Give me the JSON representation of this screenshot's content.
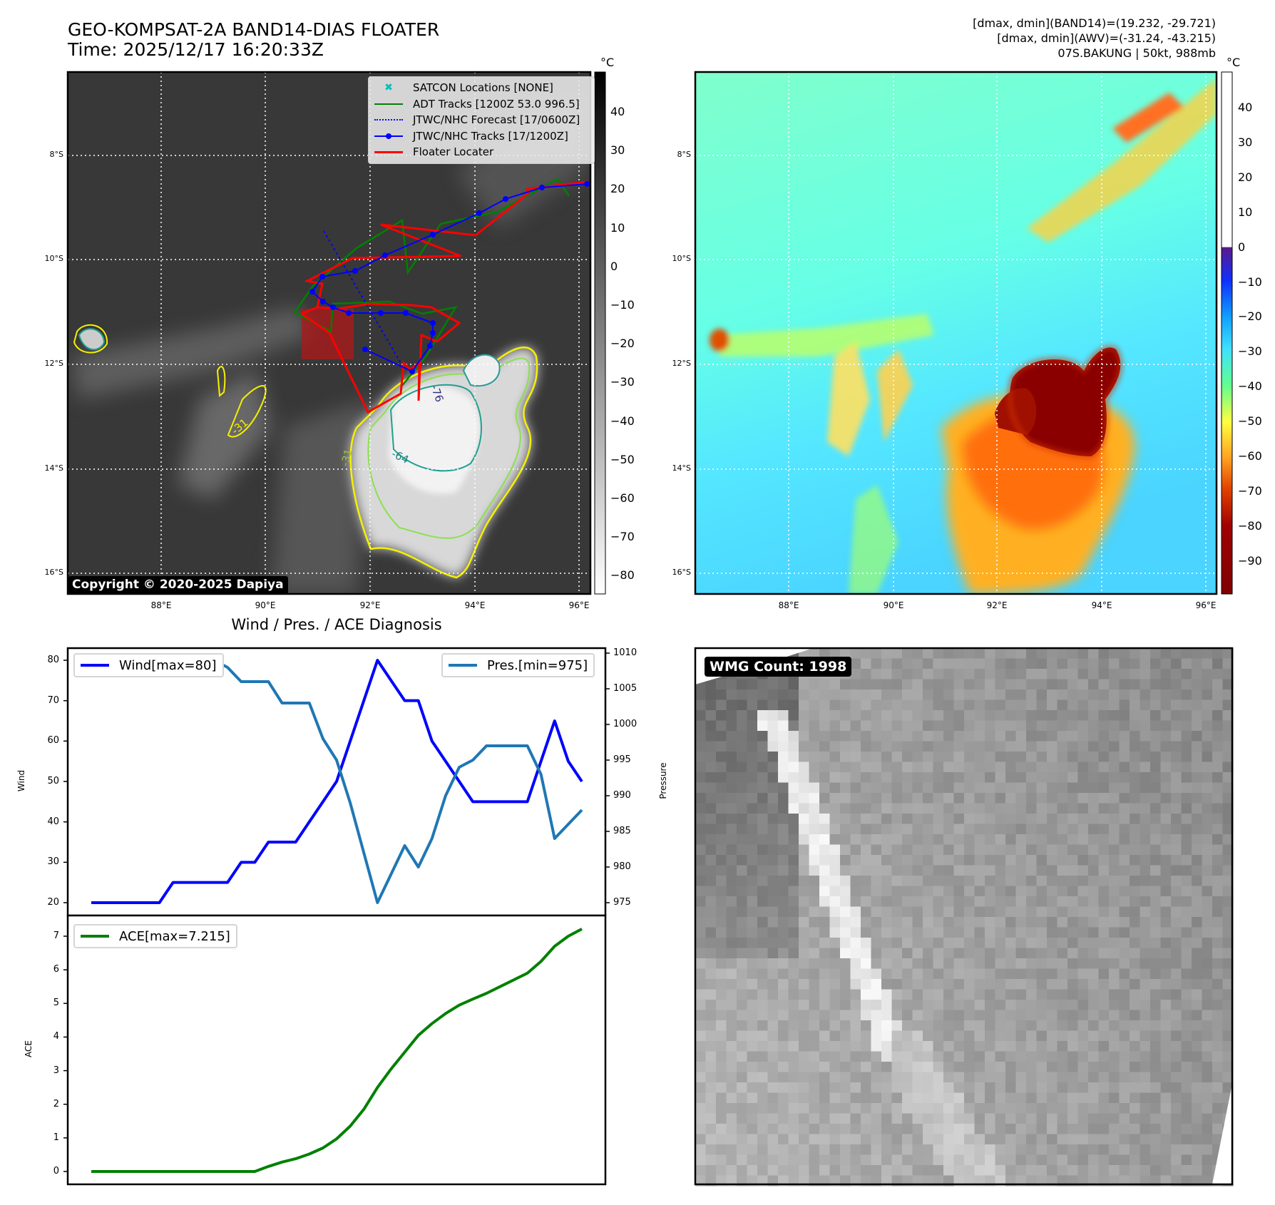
{
  "title": {
    "line1": "GEO-KOMPSAT-2A BAND14-DIAS FLOATER",
    "line2": "Time: 2025/12/17 16:20:33Z"
  },
  "header_info": {
    "line1": "[dmax, dmin](BAND14)=(19.232, -29.721)",
    "line2": "[dmax, dmin](AWV)=(-31.24, -43.215)",
    "line3": "07S.BAKUNG | 50kt, 988mb"
  },
  "map": {
    "lat_labels": [
      "8°S",
      "10°S",
      "12°S",
      "14°S",
      "16°S"
    ],
    "lon_labels": [
      "88°E",
      "90°E",
      "92°E",
      "94°E",
      "96°E"
    ],
    "contour_labels": [
      "-31",
      "-64",
      "-76",
      "-31"
    ],
    "copyright": "Copyright © 2020-2025 Dapiya",
    "legend": [
      {
        "label": "SATCON Locations [NONE]",
        "color": "#00bfbf"
      },
      {
        "label": "ADT Tracks [1200Z 53.0 996.5]",
        "color": "#008000"
      },
      {
        "label": "JTWC/NHC Forecast [17/0600Z]",
        "color": "#0000ff"
      },
      {
        "label": "JTWC/NHC Tracks [17/1200Z]",
        "color": "#0000ff"
      },
      {
        "label": "Floater Locater",
        "color": "#ff0000"
      }
    ]
  },
  "colorbar_left": {
    "unit": "°C",
    "ticks": [
      "40",
      "30",
      "20",
      "10",
      "0",
      "−10",
      "−20",
      "−30",
      "−40",
      "−50",
      "−60",
      "−70",
      "−80"
    ]
  },
  "colorbar_right": {
    "unit": "°C",
    "ticks": [
      "40",
      "30",
      "20",
      "10",
      "0",
      "−10",
      "−20",
      "−30",
      "−40",
      "−50",
      "−60",
      "−70",
      "−80",
      "−90"
    ]
  },
  "wmg": {
    "label": "WMG Count: 1998"
  },
  "chart_data": {
    "type": "line",
    "title": "Wind / Pres. / ACE Diagnosis",
    "x": [
      0,
      1,
      2,
      3,
      4,
      5,
      6,
      7,
      8,
      9,
      10,
      11,
      12,
      13,
      14,
      15,
      16,
      17,
      18,
      19,
      20,
      21,
      22,
      23,
      24,
      25,
      26,
      27,
      28,
      29,
      30,
      31,
      32,
      33,
      34,
      35,
      36
    ],
    "series": [
      {
        "name": "Wind[max=80]",
        "axis": "wind",
        "color": "#0000ff",
        "values": [
          20,
          20,
          20,
          20,
          20,
          20,
          25,
          25,
          25,
          25,
          25,
          30,
          30,
          35,
          35,
          35,
          40,
          45,
          50,
          60,
          70,
          80,
          75,
          70,
          70,
          60,
          55,
          50,
          45,
          45,
          45,
          45,
          45,
          55,
          65,
          55,
          50
        ]
      },
      {
        "name": "Pres.[min=975]",
        "axis": "pressure",
        "color": "#1f77b4",
        "values": [
          1008,
          1008,
          1008,
          1008,
          1008,
          1008,
          1007,
          1007,
          1007,
          1009,
          1008,
          1006,
          1006,
          1006,
          1003,
          1003,
          1003,
          998,
          995,
          989,
          982,
          975,
          979,
          983,
          980,
          984,
          990,
          994,
          995,
          997,
          997,
          997,
          997,
          993,
          984,
          986,
          988
        ]
      },
      {
        "name": "ACE[max=7.215]",
        "axis": "ace",
        "color": "#008000",
        "values": [
          0,
          0,
          0,
          0,
          0,
          0,
          0,
          0,
          0,
          0,
          0,
          0,
          0,
          0.15,
          0.28,
          0.38,
          0.52,
          0.7,
          0.97,
          1.35,
          1.85,
          2.5,
          3.05,
          3.55,
          4.05,
          4.4,
          4.7,
          4.95,
          5.13,
          5.3,
          5.5,
          5.7,
          5.9,
          6.25,
          6.7,
          7.0,
          7.215
        ]
      }
    ],
    "wind_axis": {
      "label": "Wind",
      "ticks": [
        20,
        30,
        40,
        50,
        60,
        70,
        80
      ],
      "ylim": [
        20,
        80
      ]
    },
    "pressure_axis": {
      "label": "Pressure",
      "ticks": [
        975,
        980,
        985,
        990,
        995,
        1000,
        1005,
        1010
      ],
      "ylim": [
        975,
        1010
      ]
    },
    "ace_axis": {
      "label": "ACE",
      "ticks": [
        0,
        1,
        2,
        3,
        4,
        5,
        6,
        7
      ],
      "ylim": [
        0,
        7
      ]
    }
  }
}
